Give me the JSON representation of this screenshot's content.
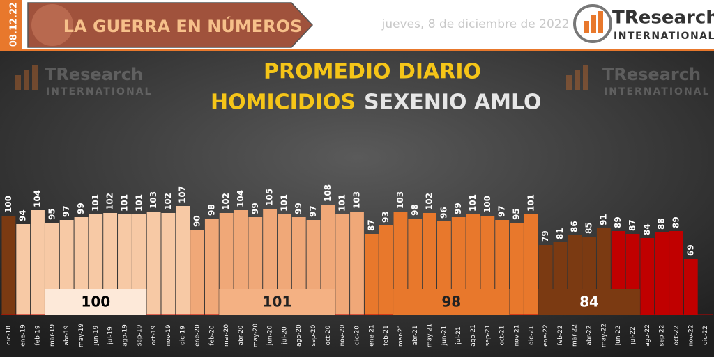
{
  "header": {
    "date_tag": "08.12.22",
    "banner": "LA GUERRA EN NÚMEROS",
    "date": "jueves, 8 de diciembre de 2022",
    "logo_name": "TResearch",
    "logo_sub": "INTERNATIONAL"
  },
  "chart_data": {
    "type": "bar",
    "title": "PROMEDIO DIARIO",
    "title_line2_a": "HOMICIDIOS",
    "title_line2_b": "SEXENIO AMLO",
    "categories": [
      "dic-18",
      "ene-19",
      "feb-19",
      "mar-19",
      "abr-19",
      "may-19",
      "jun-19",
      "jul-19",
      "ago-19",
      "sep-19",
      "oct-19",
      "nov-19",
      "dic-19",
      "ene-20",
      "feb-20",
      "mar-20",
      "abr-20",
      "may-20",
      "jun-20",
      "jul-20",
      "ago-20",
      "sep-20",
      "oct-20",
      "nov-20",
      "dic-20",
      "ene-21",
      "feb-21",
      "mar-21",
      "abr-21",
      "may-21",
      "jun-21",
      "jul-21",
      "ago-21",
      "sep-21",
      "oct-21",
      "nov-21",
      "dic-21",
      "ene-22",
      "feb-22",
      "mar-22",
      "abr-22",
      "may-22",
      "jun-22",
      "jul-22",
      "ago-22",
      "sep-22",
      "oct-22",
      "nov-22",
      "dic-22"
    ],
    "values": [
      100,
      94,
      104,
      95,
      97,
      99,
      101,
      102,
      101,
      101,
      103,
      102,
      107,
      90,
      98,
      102,
      104,
      99,
      105,
      101,
      99,
      97,
      108,
      101,
      103,
      87,
      93,
      103,
      98,
      102,
      96,
      99,
      101,
      100,
      97,
      95,
      101,
      79,
      81,
      86,
      85,
      91,
      89,
      87,
      84,
      88,
      89,
      69,
      null
    ],
    "colors": [
      "#7b3a12",
      "#f7c9a5",
      "#f7c9a5",
      "#f7c9a5",
      "#f7c9a5",
      "#f7c9a5",
      "#f7c9a5",
      "#f7c9a5",
      "#f7c9a5",
      "#f7c9a5",
      "#f7c9a5",
      "#f7c9a5",
      "#f7c9a5",
      "#f0a878",
      "#f0a878",
      "#f0a878",
      "#f0a878",
      "#f0a878",
      "#f0a878",
      "#f0a878",
      "#f0a878",
      "#f0a878",
      "#f0a878",
      "#f0a878",
      "#f0a878",
      "#e8782c",
      "#e8782c",
      "#e8782c",
      "#e8782c",
      "#e8782c",
      "#e8782c",
      "#e8782c",
      "#e8782c",
      "#e8782c",
      "#e8782c",
      "#e8782c",
      "#e8782c",
      "#7b3a12",
      "#7b3a12",
      "#7b3a12",
      "#7b3a12",
      "#7b3a12",
      "#c00000",
      "#c00000",
      "#c00000",
      "#c00000",
      "#c00000",
      "#c00000",
      "#c00000"
    ],
    "ylim": [
      29,
      130
    ],
    "averages": [
      {
        "value": 100,
        "color": "#fde9d9"
      },
      {
        "value": 101,
        "color": "#f4b183"
      },
      {
        "value": 98,
        "color": "#e8782c"
      },
      {
        "value": 84,
        "color": "#7b3a12"
      }
    ]
  }
}
